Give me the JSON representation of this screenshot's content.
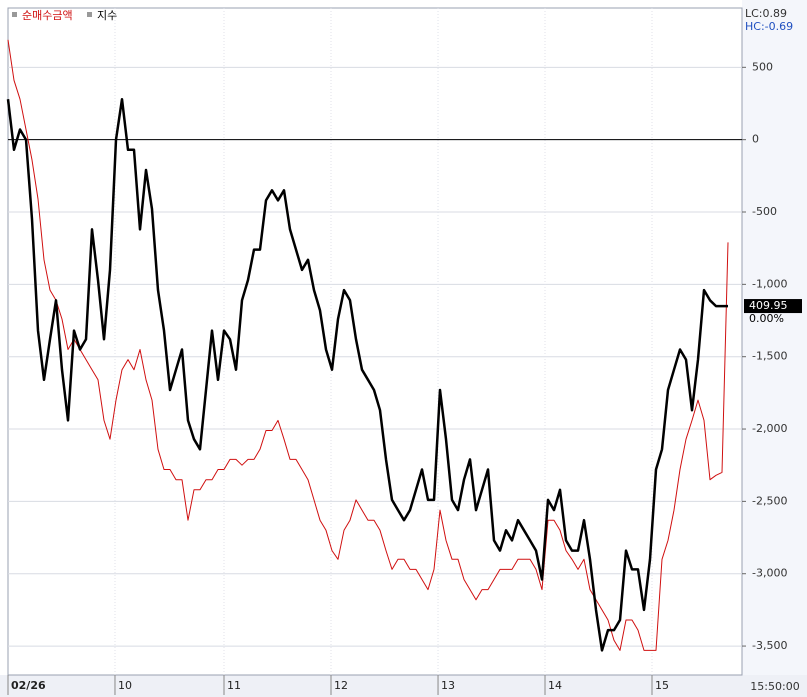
{
  "chart_data": {
    "type": "line",
    "series": [
      {
        "name": "순매수금액",
        "color": "#d01010",
        "width": 1,
        "values": [
          690,
          410,
          280,
          70,
          -140,
          -410,
          -830,
          -1040,
          -1110,
          -1240,
          -1450,
          -1380,
          -1450,
          -1520,
          -1590,
          -1660,
          -1940,
          -2070,
          -1800,
          -1590,
          -1520,
          -1590,
          -1450,
          -1660,
          -1800,
          -2140,
          -2280,
          -2280,
          -2350,
          -2350,
          -2630,
          -2420,
          -2420,
          -2350,
          -2350,
          -2280,
          -2280,
          -2210,
          -2210,
          -2250,
          -2210,
          -2210,
          -2140,
          -2010,
          -2010,
          -1940,
          -2070,
          -2210,
          -2210,
          -2280,
          -2350,
          -2490,
          -2630,
          -2700,
          -2840,
          -2900,
          -2700,
          -2630,
          -2490,
          -2560,
          -2630,
          -2630,
          -2700,
          -2840,
          -2970,
          -2900,
          -2900,
          -2970,
          -2970,
          -3040,
          -3110,
          -2970,
          -2560,
          -2770,
          -2900,
          -2900,
          -3040,
          -3110,
          -3180,
          -3110,
          -3110,
          -3040,
          -2970,
          -2970,
          -2970,
          -2900,
          -2900,
          -2900,
          -2970,
          -3110,
          -2630,
          -2630,
          -2700,
          -2840,
          -2900,
          -2970,
          -2900,
          -3110,
          -3180,
          -3250,
          -3320,
          -3460,
          -3530,
          -3320,
          -3320,
          -3390,
          -3530,
          -3530,
          -3530,
          -2900,
          -2770,
          -2560,
          -2280,
          -2070,
          -1940,
          -1800,
          -1940,
          -2350,
          -2320,
          -2300,
          -710
        ]
      },
      {
        "name": "지수",
        "color": "#000000",
        "width": 2.5,
        "values": [
          280,
          -70,
          70,
          0,
          -550,
          -1320,
          -1660,
          -1380,
          -1110,
          -1590,
          -1940,
          -1320,
          -1450,
          -1380,
          -620,
          -970,
          -1380,
          -900,
          0,
          280,
          -70,
          -70,
          -620,
          -210,
          -480,
          -1040,
          -1320,
          -1730,
          -1590,
          -1450,
          -1940,
          -2070,
          -2140,
          -1730,
          -1320,
          -1660,
          -1320,
          -1380,
          -1590,
          -1110,
          -970,
          -760,
          -760,
          -420,
          -350,
          -420,
          -350,
          -620,
          -760,
          -900,
          -830,
          -1040,
          -1180,
          -1450,
          -1590,
          -1240,
          -1040,
          -1110,
          -1380,
          -1590,
          -1660,
          -1730,
          -1870,
          -2210,
          -2490,
          -2560,
          -2630,
          -2560,
          -2420,
          -2280,
          -2490,
          -2490,
          -1730,
          -2070,
          -2490,
          -2560,
          -2350,
          -2210,
          -2560,
          -2420,
          -2280,
          -2770,
          -2840,
          -2700,
          -2770,
          -2630,
          -2700,
          -2770,
          -2840,
          -3040,
          -2490,
          -2560,
          -2420,
          -2770,
          -2840,
          -2840,
          -2630,
          -2900,
          -3250,
          -3530,
          -3390,
          -3390,
          -3320,
          -2840,
          -2970,
          -2970,
          -3250,
          -2900,
          -2280,
          -2140,
          -1730,
          -1590,
          -1450,
          -1520,
          -1870,
          -1520,
          -1040,
          -1110,
          -1150,
          -1150,
          -1150
        ]
      }
    ],
    "xlim": [
      0,
      122.33
    ],
    "xticks": [
      {
        "value": 0,
        "label": "02/26"
      },
      {
        "value": 17.83,
        "label": "10"
      },
      {
        "value": 36,
        "label": "11"
      },
      {
        "value": 53.83,
        "label": "12"
      },
      {
        "value": 71.67,
        "label": "13"
      },
      {
        "value": 89.5,
        "label": "14"
      },
      {
        "value": 107.33,
        "label": "15"
      }
    ],
    "end_time": "15:50:00",
    "ylim": [
      -3700,
      910
    ],
    "yticks": [
      500,
      0,
      {
        "value": -500,
        "label": "-500"
      },
      {
        "value": -1000,
        "label": "-1,000"
      },
      {
        "value": -1500,
        "label": "-1,500"
      },
      {
        "value": -2000,
        "label": "-2,000"
      },
      {
        "value": -2500,
        "label": "-2,500"
      },
      {
        "value": -3000,
        "label": "-3,000"
      },
      {
        "value": -3500,
        "label": "-3,500"
      }
    ],
    "zero_line": 0,
    "grid": true,
    "stats": [
      "LC:0.89",
      "HC:-0.69"
    ],
    "last_value_label": "409.95",
    "change_label": "0.00%"
  }
}
